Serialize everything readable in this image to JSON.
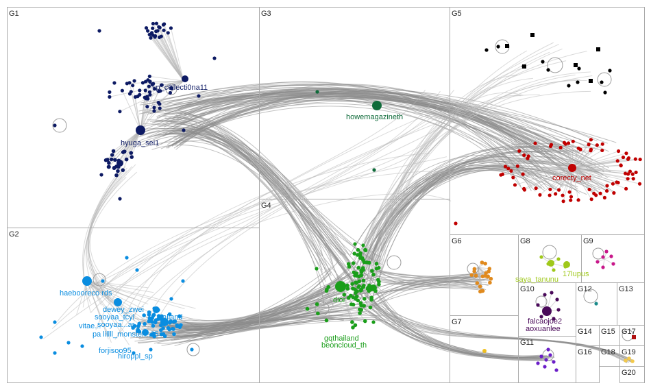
{
  "groups": [
    {
      "id": "G1",
      "label": "G1",
      "color": "#0d1a63",
      "hub": "hyuga_sei1",
      "labels": [
        "sp_c0llecti0na11",
        "hyuga_sei1"
      ]
    },
    {
      "id": "G2",
      "label": "G2",
      "color": "#0a8de0",
      "hub": "haebooreco",
      "labels": [
        "haebooreco rds",
        "dewey_zwei",
        "sooyaa...ar",
        "vitae...",
        "pa lillll_monster...25",
        "forjisoo95",
        "hiroppl_sp",
        "sooyaa_tcyl",
        "...alland"
      ]
    },
    {
      "id": "G3",
      "label": "G3",
      "color": "#0f6b3a",
      "hub": "howemagazineth",
      "labels": [
        "howemagazineth"
      ]
    },
    {
      "id": "G4",
      "label": "G4",
      "color": "#1a9e1a",
      "hub": "dior",
      "labels": [
        "dior",
        "gqthailand",
        "beoncloud_th"
      ]
    },
    {
      "id": "G5",
      "label": "G5",
      "color": "#c00000",
      "hub": "corecty_net",
      "labels": [
        "corecty_net"
      ]
    },
    {
      "id": "G6",
      "label": "G6",
      "color": "#e08a1e",
      "hub": "",
      "labels": []
    },
    {
      "id": "G7",
      "label": "G7",
      "color": "#f0c020",
      "hub": "",
      "labels": []
    },
    {
      "id": "G8",
      "label": "G8",
      "color": "#9fc81a",
      "hub": "saya_tanunu",
      "labels": [
        "saya_tanunu",
        "17lupus"
      ]
    },
    {
      "id": "G9",
      "label": "G9",
      "color": "#c8178a",
      "hub": "",
      "labels": []
    },
    {
      "id": "G10",
      "label": "G10",
      "color": "#4a0a5a",
      "hub": "falcaojoe2",
      "labels": [
        "falcaojoe2",
        "aoxuanlee"
      ]
    },
    {
      "id": "G11",
      "label": "G11",
      "color": "#6b1ec8",
      "hub": "",
      "labels": []
    },
    {
      "id": "G12",
      "label": "G12",
      "color": "#1a8a8a",
      "hub": "",
      "labels": []
    },
    {
      "id": "G13",
      "label": "G13",
      "color": "#888888",
      "hub": "",
      "labels": []
    },
    {
      "id": "G14",
      "label": "G14",
      "color": "#888888",
      "hub": "",
      "labels": []
    },
    {
      "id": "G15",
      "label": "G15",
      "color": "#888888",
      "hub": "",
      "labels": []
    },
    {
      "id": "G16",
      "label": "G16",
      "color": "#888888",
      "hub": "",
      "labels": []
    },
    {
      "id": "G17",
      "label": "G17",
      "color": "#b01010",
      "hub": "",
      "labels": []
    },
    {
      "id": "G18",
      "label": "G18",
      "color": "#888888",
      "hub": "",
      "labels": []
    },
    {
      "id": "G19",
      "label": "G19",
      "color": "#f2c94c",
      "hub": "",
      "labels": []
    },
    {
      "id": "G20",
      "label": "G20",
      "color": "#888888",
      "hub": "",
      "labels": []
    }
  ],
  "black_group_color": "#000000",
  "edge_color": "#8c8c8c"
}
